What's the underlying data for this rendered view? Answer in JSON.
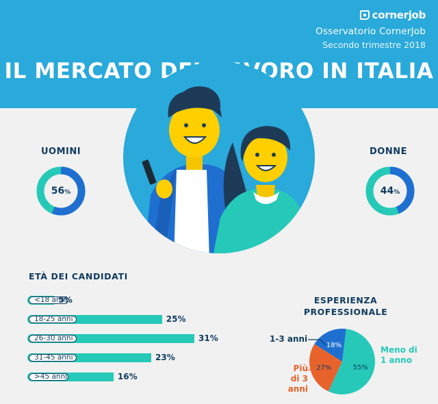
{
  "header": {
    "logo_text": "cornerjob",
    "observatory": "Osservatorio CornerJob",
    "period": "Secondo trimestre 2018",
    "title": "IL MERCATO DEL LAVORO IN ITALIA"
  },
  "colors": {
    "header_bg": "#2aa9db",
    "navy": "#0f3b5f",
    "teal": "#26c9b8",
    "blue": "#1f6fd1",
    "orange": "#e8632c",
    "background": "#f1f1f1"
  },
  "gender": {
    "men_label": "UOMINI",
    "men_value": "56",
    "women_label": "DONNE",
    "women_value": "44",
    "unit": "%"
  },
  "age": {
    "title": "ETÀ DEI CANDIDATI"
  },
  "experience": {
    "title_line1": "ESPERIENZA",
    "title_line2": "PROFESSIONALE",
    "label_less1_line1": "Meno di",
    "label_less1_line2": "1 anno",
    "label_1to3": "1-3 anni",
    "label_more3_line1": "Più",
    "label_more3_line2": "di 3 anni"
  },
  "chart_data": [
    {
      "type": "pie",
      "title": "UOMINI / DONNE",
      "categories": [
        "UOMINI",
        "DONNE"
      ],
      "values": [
        56,
        44
      ],
      "unit": "%"
    },
    {
      "type": "bar",
      "title": "ETÀ DEI CANDIDATI",
      "categories": [
        "<18 anni",
        "18-25 anni",
        "26-30 anni",
        "31-45 anni",
        ">45 anni"
      ],
      "values": [
        5,
        25,
        31,
        23,
        16
      ],
      "value_labels": [
        "5%",
        "25%",
        "31%",
        "23%",
        "16%"
      ],
      "orientation": "horizontal",
      "xlim": [
        0,
        31
      ]
    },
    {
      "type": "pie",
      "title": "ESPERIENZA PROFESSIONALE",
      "categories": [
        "Meno di 1 anno",
        "1-3 anni",
        "Più di 3 anni"
      ],
      "values": [
        55,
        18,
        27
      ],
      "value_labels": [
        "55%",
        "18%",
        "27%"
      ]
    }
  ]
}
